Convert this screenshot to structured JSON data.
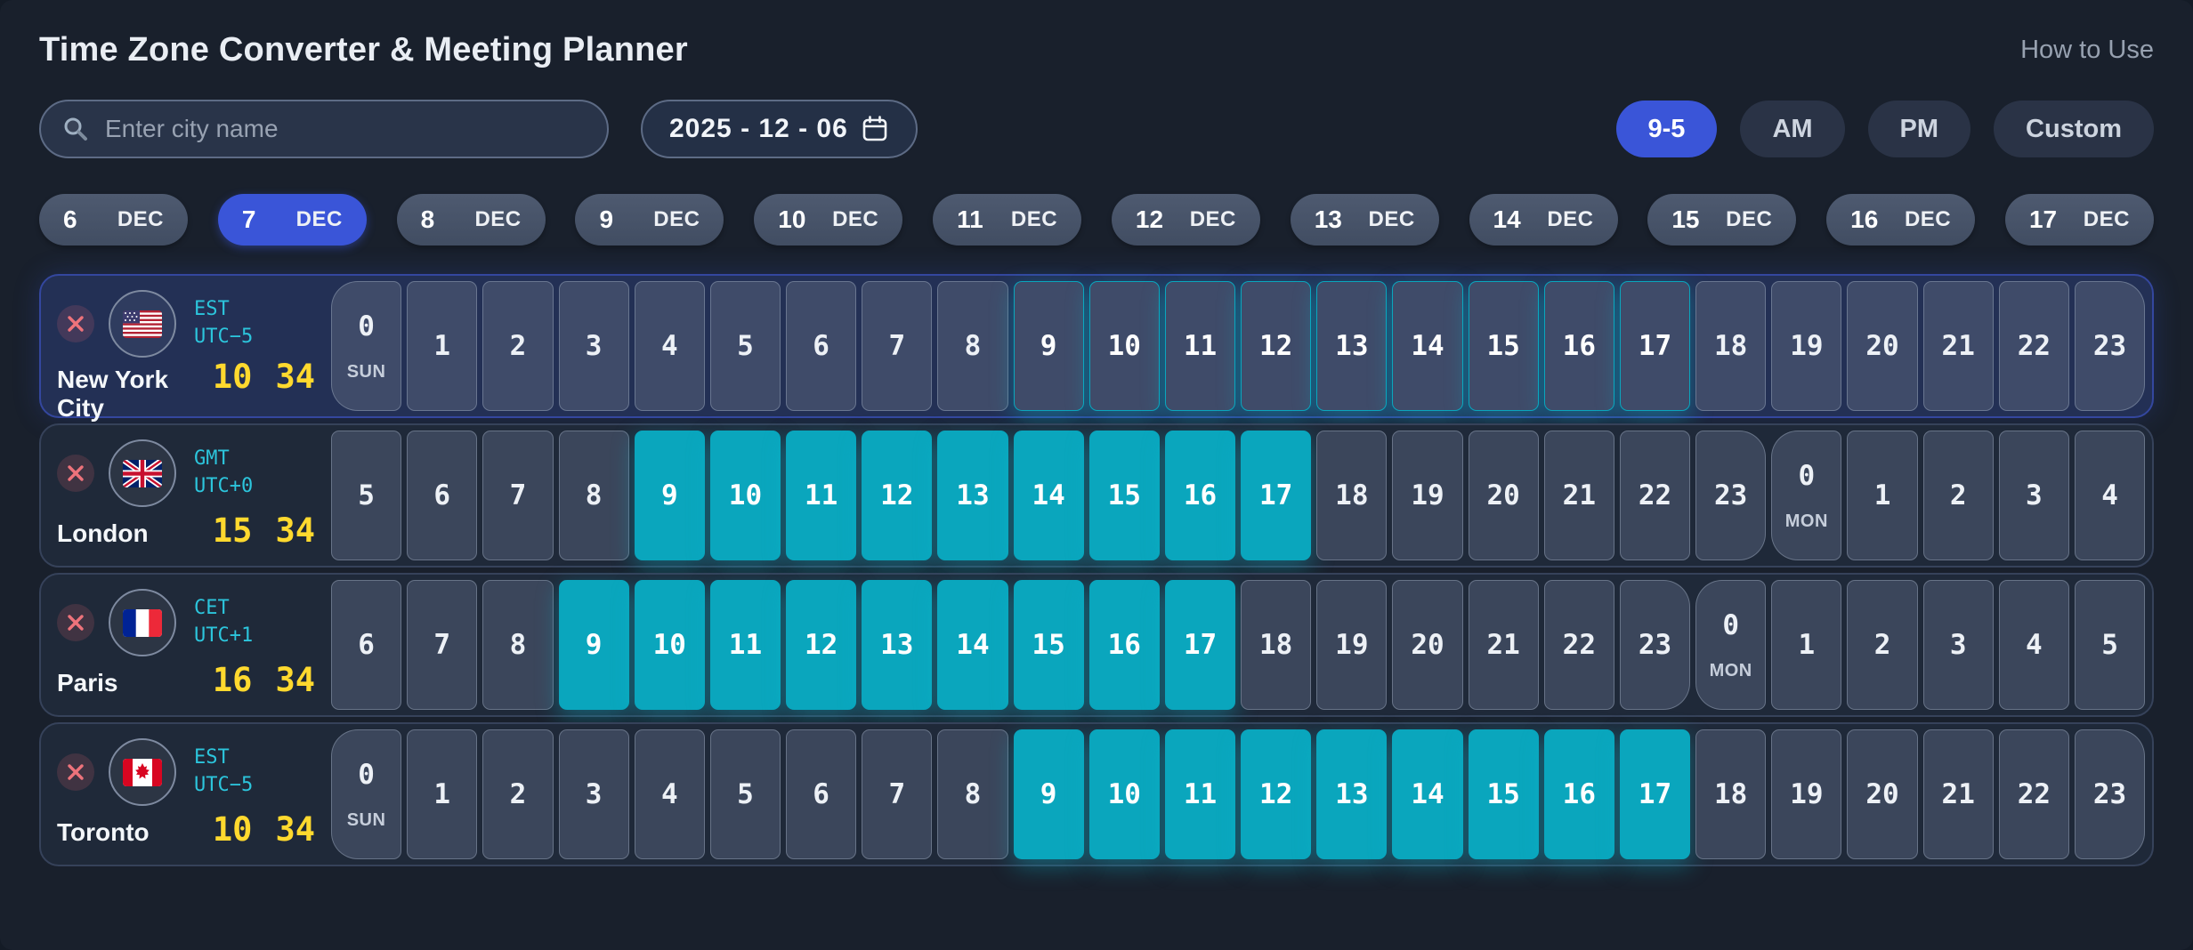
{
  "header": {
    "title": "Time Zone Converter & Meeting Planner",
    "how_to_use": "How to Use"
  },
  "controls": {
    "search_placeholder": "Enter city name",
    "date_value": "2025 - 12 - 06",
    "presets": [
      {
        "label": "9-5",
        "active": true
      },
      {
        "label": "AM",
        "active": false
      },
      {
        "label": "PM",
        "active": false
      },
      {
        "label": "Custom",
        "active": false
      }
    ]
  },
  "date_tabs": [
    {
      "day": "6",
      "month": "DEC",
      "active": false
    },
    {
      "day": "7",
      "month": "DEC",
      "active": true
    },
    {
      "day": "8",
      "month": "DEC",
      "active": false
    },
    {
      "day": "9",
      "month": "DEC",
      "active": false
    },
    {
      "day": "10",
      "month": "DEC",
      "active": false
    },
    {
      "day": "11",
      "month": "DEC",
      "active": false
    },
    {
      "day": "12",
      "month": "DEC",
      "active": false
    },
    {
      "day": "13",
      "month": "DEC",
      "active": false
    },
    {
      "day": "14",
      "month": "DEC",
      "active": false
    },
    {
      "day": "15",
      "month": "DEC",
      "active": false
    },
    {
      "day": "16",
      "month": "DEC",
      "active": false
    },
    {
      "day": "17",
      "month": "DEC",
      "active": false
    }
  ],
  "icons": {
    "search": "search-icon",
    "calendar": "calendar-icon",
    "close": "close-icon",
    "flags": [
      "us-flag-icon",
      "uk-flag-icon",
      "fr-flag-icon",
      "ca-flag-icon"
    ]
  },
  "colors": {
    "accent_blue": "#3a55d8",
    "highlight_cyan": "#0aa6bd",
    "tz_text_cyan": "#2cc5dc",
    "time_yellow": "#ffd92e",
    "page_bg": "#19202c"
  },
  "rows": [
    {
      "city": "New York City",
      "tz": "EST",
      "offset": "UTC−5",
      "flag": "us",
      "hour": "10",
      "minute": "34",
      "home": true,
      "cells": [
        {
          "h": "0",
          "day": "SUN",
          "edge": "start"
        },
        {
          "h": "1"
        },
        {
          "h": "2"
        },
        {
          "h": "3"
        },
        {
          "h": "4"
        },
        {
          "h": "5"
        },
        {
          "h": "6"
        },
        {
          "h": "7"
        },
        {
          "h": "8"
        },
        {
          "h": "9",
          "on": true
        },
        {
          "h": "10",
          "on": true
        },
        {
          "h": "11",
          "on": true
        },
        {
          "h": "12",
          "on": true
        },
        {
          "h": "13",
          "on": true
        },
        {
          "h": "14",
          "on": true
        },
        {
          "h": "15",
          "on": true
        },
        {
          "h": "16",
          "on": true
        },
        {
          "h": "17",
          "on": true
        },
        {
          "h": "18"
        },
        {
          "h": "19"
        },
        {
          "h": "20"
        },
        {
          "h": "21"
        },
        {
          "h": "22"
        },
        {
          "h": "23",
          "edge": "end"
        }
      ]
    },
    {
      "city": "London",
      "tz": "GMT",
      "offset": "UTC+0",
      "flag": "uk",
      "hour": "15",
      "minute": "34",
      "home": false,
      "cells": [
        {
          "h": "5"
        },
        {
          "h": "6"
        },
        {
          "h": "7"
        },
        {
          "h": "8"
        },
        {
          "h": "9",
          "on": true
        },
        {
          "h": "10",
          "on": true
        },
        {
          "h": "11",
          "on": true
        },
        {
          "h": "12",
          "on": true
        },
        {
          "h": "13",
          "on": true
        },
        {
          "h": "14",
          "on": true
        },
        {
          "h": "15",
          "on": true
        },
        {
          "h": "16",
          "on": true
        },
        {
          "h": "17",
          "on": true
        },
        {
          "h": "18"
        },
        {
          "h": "19"
        },
        {
          "h": "20"
        },
        {
          "h": "21"
        },
        {
          "h": "22"
        },
        {
          "h": "23",
          "edge": "end"
        },
        {
          "h": "0",
          "day": "MON",
          "edge": "start"
        },
        {
          "h": "1"
        },
        {
          "h": "2"
        },
        {
          "h": "3"
        },
        {
          "h": "4"
        }
      ]
    },
    {
      "city": "Paris",
      "tz": "CET",
      "offset": "UTC+1",
      "flag": "fr",
      "hour": "16",
      "minute": "34",
      "home": false,
      "cells": [
        {
          "h": "6"
        },
        {
          "h": "7"
        },
        {
          "h": "8"
        },
        {
          "h": "9",
          "on": true
        },
        {
          "h": "10",
          "on": true
        },
        {
          "h": "11",
          "on": true
        },
        {
          "h": "12",
          "on": true
        },
        {
          "h": "13",
          "on": true
        },
        {
          "h": "14",
          "on": true
        },
        {
          "h": "15",
          "on": true
        },
        {
          "h": "16",
          "on": true
        },
        {
          "h": "17",
          "on": true
        },
        {
          "h": "18"
        },
        {
          "h": "19"
        },
        {
          "h": "20"
        },
        {
          "h": "21"
        },
        {
          "h": "22"
        },
        {
          "h": "23",
          "edge": "end"
        },
        {
          "h": "0",
          "day": "MON",
          "edge": "start"
        },
        {
          "h": "1"
        },
        {
          "h": "2"
        },
        {
          "h": "3"
        },
        {
          "h": "4"
        },
        {
          "h": "5"
        }
      ]
    },
    {
      "city": "Toronto",
      "tz": "EST",
      "offset": "UTC−5",
      "flag": "ca",
      "hour": "10",
      "minute": "34",
      "home": false,
      "cells": [
        {
          "h": "0",
          "day": "SUN",
          "edge": "start"
        },
        {
          "h": "1"
        },
        {
          "h": "2"
        },
        {
          "h": "3"
        },
        {
          "h": "4"
        },
        {
          "h": "5"
        },
        {
          "h": "6"
        },
        {
          "h": "7"
        },
        {
          "h": "8"
        },
        {
          "h": "9",
          "on": true
        },
        {
          "h": "10",
          "on": true
        },
        {
          "h": "11",
          "on": true
        },
        {
          "h": "12",
          "on": true
        },
        {
          "h": "13",
          "on": true
        },
        {
          "h": "14",
          "on": true
        },
        {
          "h": "15",
          "on": true
        },
        {
          "h": "16",
          "on": true
        },
        {
          "h": "17",
          "on": true
        },
        {
          "h": "18"
        },
        {
          "h": "19"
        },
        {
          "h": "20"
        },
        {
          "h": "21"
        },
        {
          "h": "22"
        },
        {
          "h": "23",
          "edge": "end"
        }
      ]
    }
  ]
}
